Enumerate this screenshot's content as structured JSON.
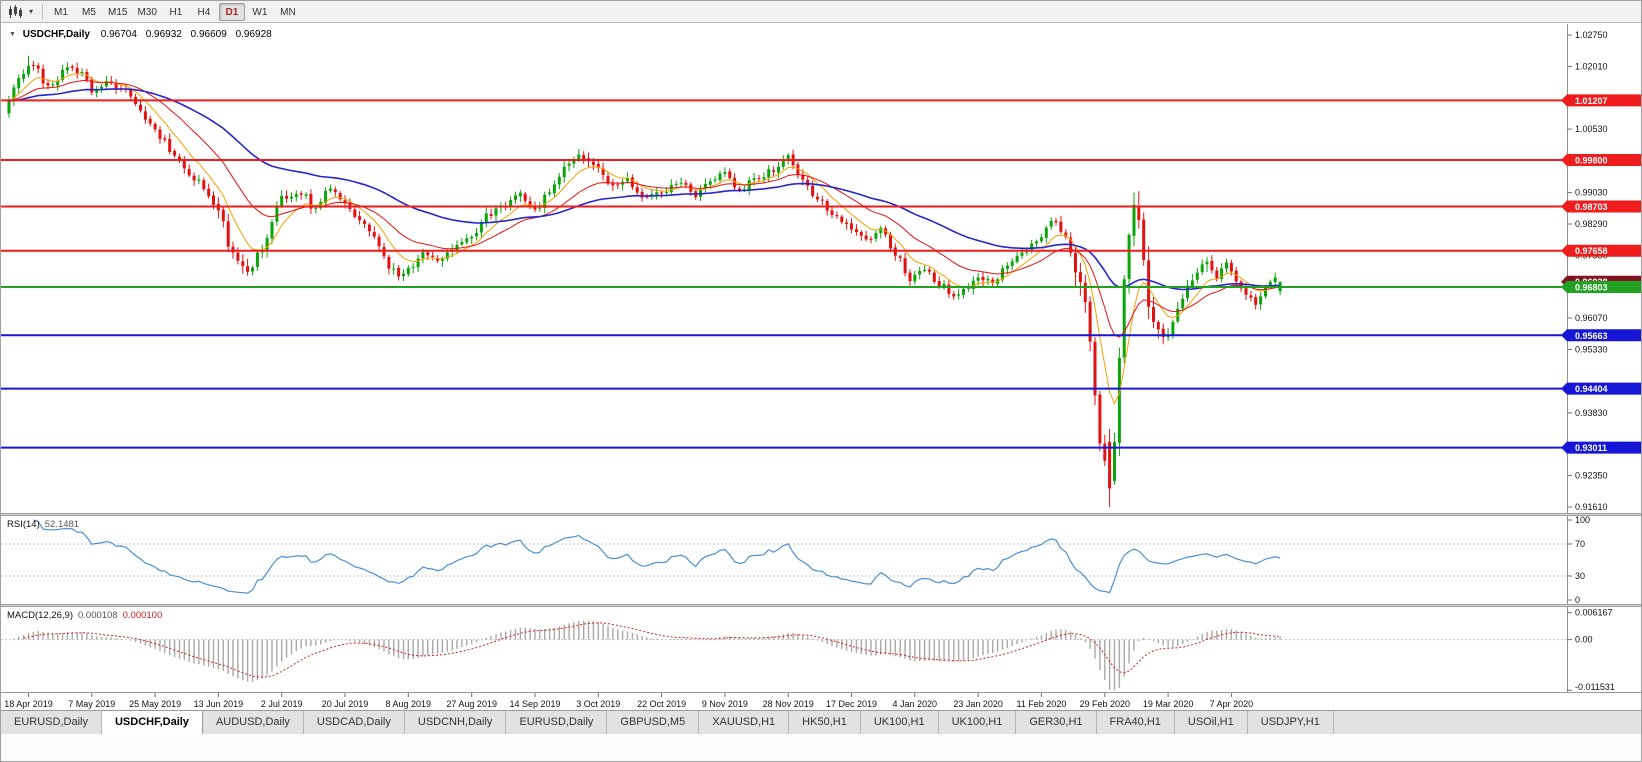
{
  "toolbar": {
    "timeframes": [
      "M1",
      "M5",
      "M15",
      "M30",
      "H1",
      "H4",
      "D1",
      "W1",
      "MN"
    ],
    "active_timeframe": "D1"
  },
  "chart": {
    "header": {
      "symbol": "USDCHF,Daily",
      "open": "0.96704",
      "high": "0.96932",
      "low": "0.96609",
      "close": "0.96928"
    },
    "y_axis": {
      "top_price": 1.0275,
      "bottom_price": 0.9161,
      "ticks": [
        "1.02750",
        "1.02010",
        "1.00530",
        "0.99030",
        "0.98290",
        "0.97550",
        "0.96070",
        "0.95330",
        "0.93830",
        "0.92350",
        "0.91610"
      ]
    },
    "x_axis": {
      "dates": [
        "18 Apr 2019",
        "7 May 2019",
        "25 May 2019",
        "13 Jun 2019",
        "2 Jul 2019",
        "20 Jul 2019",
        "8 Aug 2019",
        "27 Aug 2019",
        "14 Sep 2019",
        "3 Oct 2019",
        "22 Oct 2019",
        "9 Nov 2019",
        "28 Nov 2019",
        "17 Dec 2019",
        "4 Jan 2020",
        "23 Jan 2020",
        "11 Feb 2020",
        "29 Feb 2020",
        "19 Mar 2020",
        "7 Apr 2020"
      ]
    },
    "hlines": [
      {
        "price": 1.01207,
        "label": "1.01207",
        "color": "#ee1c1c"
      },
      {
        "price": 0.998,
        "label": "0.99800",
        "color": "#ee1c1c"
      },
      {
        "price": 0.98703,
        "label": "0.98703",
        "color": "#ee1c1c"
      },
      {
        "price": 0.97658,
        "label": "0.97658",
        "color": "#ee1c1c"
      },
      {
        "price": 0.96803,
        "label": "0.96803",
        "color": "#21a121"
      },
      {
        "price": 0.95663,
        "label": "0.95663",
        "color": "#1616d6"
      },
      {
        "price": 0.94404,
        "label": "0.94404",
        "color": "#1616d6"
      },
      {
        "price": 0.93011,
        "label": "0.93011",
        "color": "#1616d6"
      }
    ],
    "current_price": {
      "value": 0.96928,
      "label": "0.96928",
      "box_color": "#7e1420"
    },
    "colors": {
      "up": "#0ba50b",
      "down": "#e31212",
      "ma_fast": "#f2a200",
      "ma_mid": "#e31212",
      "ma_slow": "#2626cc"
    }
  },
  "indicators": {
    "rsi": {
      "name": "RSI(14)",
      "value": "52.1481",
      "ticks": [
        "100",
        "70",
        "30",
        "0"
      ],
      "levels": [
        70,
        30
      ],
      "color": "#4a90d2"
    },
    "macd": {
      "name": "MACD(12,26,9)",
      "value_main": "0.000108",
      "value_signal": "0.000100",
      "ticks": [
        "0.006167",
        "0.00",
        "-0.011531"
      ],
      "hist_color": "#a8a8a8",
      "signal_color": "#d42020"
    }
  },
  "tabs": {
    "items": [
      "EURUSD,Daily",
      "USDCHF,Daily",
      "AUDUSD,Daily",
      "USDCAD,Daily",
      "USDCNH,Daily",
      "EURUSD,Daily",
      "GBPUSD,M5",
      "XAUUSD,H1",
      "HK50,H1",
      "UK100,H1",
      "UK100,H1",
      "GER30,H1",
      "FRA40,H1",
      "USOil,H1",
      "USDJPY,H1"
    ],
    "active_index": 1
  },
  "chart_data": {
    "type": "candlestick",
    "symbol": "USDCHF",
    "timeframe": "Daily",
    "bars": 262,
    "y_range": [
      0.9161,
      1.0275
    ],
    "last_ohlc": {
      "open": 0.96704,
      "high": 0.96932,
      "low": 0.96609,
      "close": 0.96928
    },
    "support_resistance_levels": [
      1.01207,
      0.998,
      0.98703,
      0.97658,
      0.96803,
      0.95663,
      0.94404,
      0.93011
    ],
    "rsi_last": 52.1481,
    "macd_last": [
      0.000108,
      0.0001
    ],
    "price_anchors": [
      [
        0,
        1.0125
      ],
      [
        2,
        1.018
      ],
      [
        5,
        1.0205
      ],
      [
        8,
        1.015
      ],
      [
        12,
        1.0195
      ],
      [
        15,
        1.0185
      ],
      [
        17,
        1.014
      ],
      [
        20,
        1.0165
      ],
      [
        24,
        1.0145
      ],
      [
        28,
        1.008
      ],
      [
        31,
        1.0035
      ],
      [
        34,
        0.9995
      ],
      [
        38,
        0.9935
      ],
      [
        43,
        0.987
      ],
      [
        46,
        0.9755
      ],
      [
        49,
        0.9718
      ],
      [
        52,
        0.9775
      ],
      [
        56,
        0.989
      ],
      [
        60,
        0.9905
      ],
      [
        63,
        0.986
      ],
      [
        66,
        0.9915
      ],
      [
        69,
        0.988
      ],
      [
        72,
        0.984
      ],
      [
        75,
        0.9795
      ],
      [
        78,
        0.973
      ],
      [
        80,
        0.9705
      ],
      [
        82,
        0.9725
      ],
      [
        85,
        0.9762
      ],
      [
        88,
        0.974
      ],
      [
        91,
        0.9772
      ],
      [
        95,
        0.9802
      ],
      [
        98,
        0.9848
      ],
      [
        102,
        0.9872
      ],
      [
        105,
        0.99
      ],
      [
        108,
        0.9862
      ],
      [
        111,
        0.9905
      ],
      [
        114,
        0.9958
      ],
      [
        117,
        0.9988
      ],
      [
        121,
        0.9958
      ],
      [
        124,
        0.9915
      ],
      [
        127,
        0.9932
      ],
      [
        130,
        0.9895
      ],
      [
        134,
        0.9905
      ],
      [
        138,
        0.9932
      ],
      [
        141,
        0.9895
      ],
      [
        144,
        0.993
      ],
      [
        147,
        0.995
      ],
      [
        150,
        0.991
      ],
      [
        153,
        0.9935
      ],
      [
        157,
        0.9955
      ],
      [
        160,
        0.9985
      ],
      [
        163,
        0.993
      ],
      [
        166,
        0.989
      ],
      [
        169,
        0.9855
      ],
      [
        173,
        0.982
      ],
      [
        176,
        0.979
      ],
      [
        179,
        0.9818
      ],
      [
        182,
        0.976
      ],
      [
        185,
        0.97
      ],
      [
        188,
        0.9718
      ],
      [
        191,
        0.9688
      ],
      [
        194,
        0.966
      ],
      [
        197,
        0.968
      ],
      [
        199,
        0.9698
      ],
      [
        202,
        0.9692
      ],
      [
        205,
        0.973
      ],
      [
        208,
        0.9762
      ],
      [
        212,
        0.9795
      ],
      [
        214,
        0.9838
      ],
      [
        217,
        0.98
      ],
      [
        219,
        0.9735
      ],
      [
        221,
        0.965
      ],
      [
        222,
        0.956
      ],
      [
        223,
        0.943
      ],
      [
        224,
        0.933
      ],
      [
        225,
        0.927
      ],
      [
        226,
        0.921
      ],
      [
        227,
        0.932
      ],
      [
        228,
        0.952
      ],
      [
        229,
        0.968
      ],
      [
        230,
        0.982
      ],
      [
        231,
        0.989
      ],
      [
        232,
        0.984
      ],
      [
        233,
        0.974
      ],
      [
        234,
        0.965
      ],
      [
        236,
        0.959
      ],
      [
        238,
        0.9555
      ],
      [
        240,
        0.962
      ],
      [
        242,
        0.968
      ],
      [
        244,
        0.972
      ],
      [
        246,
        0.9748
      ],
      [
        248,
        0.97
      ],
      [
        250,
        0.9742
      ],
      [
        252,
        0.97
      ],
      [
        254,
        0.966
      ],
      [
        256,
        0.964
      ],
      [
        258,
        0.9685
      ],
      [
        260,
        0.9705
      ],
      [
        261,
        0.96928
      ]
    ]
  }
}
